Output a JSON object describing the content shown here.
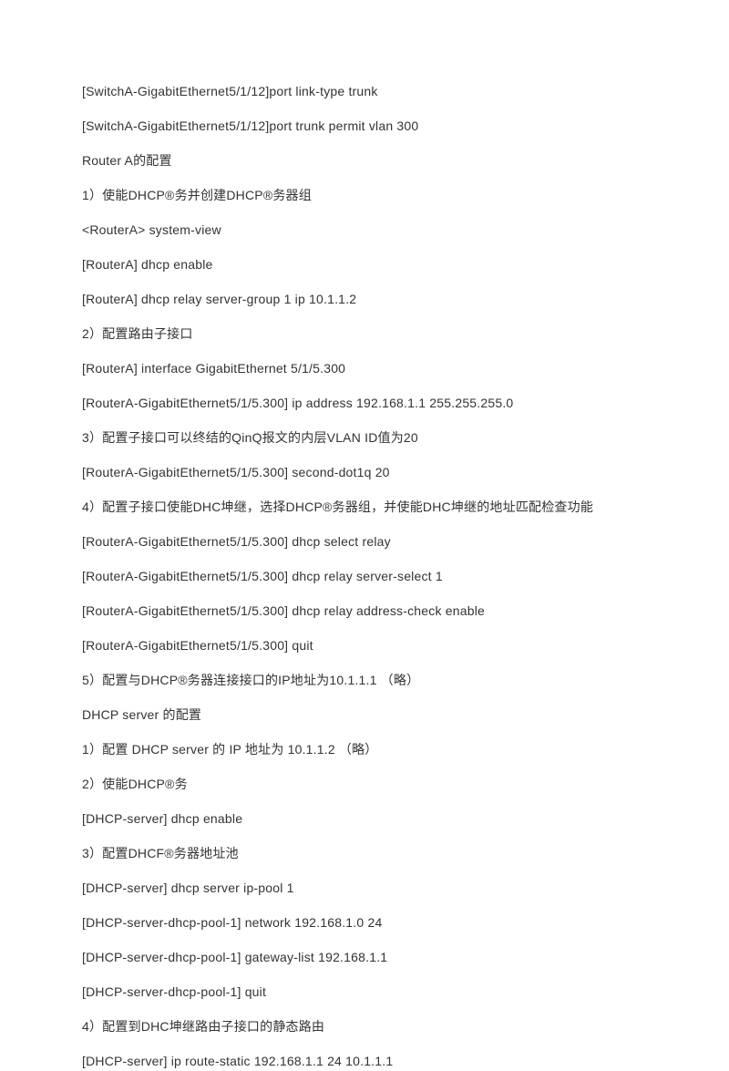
{
  "document": {
    "background_color": "#ffffff",
    "text_color": "#333333",
    "font_size": 14,
    "line_spacing": 17,
    "lines": [
      "[SwitchA-GigabitEthernet5/1/12]port link-type trunk",
      "[SwitchA-GigabitEthernet5/1/12]port trunk permit vlan 300",
      "Router A的配置",
      "1）使能DHCP®务并创建DHCP®务器组",
      "<RouterA> system-view",
      "[RouterA] dhcp enable",
      "[RouterA] dhcp relay server-group 1 ip 10.1.1.2",
      "2）配置路由子接口",
      "[RouterA] interface GigabitEthernet 5/1/5.300",
      "[RouterA-GigabitEthernet5/1/5.300] ip address 192.168.1.1 255.255.255.0",
      "3）配置子接口可以终结的QinQ报文的内层VLAN ID值为20",
      "[RouterA-GigabitEthernet5/1/5.300] second-dot1q 20",
      "4）配置子接口使能DHC坤继，选择DHCP®务器组，并使能DHC坤继的地址匹配检查功能",
      "[RouterA-GigabitEthernet5/1/5.300] dhcp select relay",
      "[RouterA-GigabitEthernet5/1/5.300] dhcp relay server-select 1",
      "[RouterA-GigabitEthernet5/1/5.300] dhcp relay address-check enable",
      "[RouterA-GigabitEthernet5/1/5.300] quit",
      "5）配置与DHCP®务器连接接口的IP地址为10.1.1.1 （略）",
      "DHCP server 的配置",
      "1）配置  DHCP server 的  IP 地址为  10.1.1.2 （略）",
      "2）使能DHCP®务",
      "[DHCP-server] dhcp enable",
      "3）配置DHCF®务器地址池",
      "[DHCP-server] dhcp server ip-pool 1",
      "[DHCP-server-dhcp-pool-1] network 192.168.1.0 24",
      "[DHCP-server-dhcp-pool-1] gateway-list 192.168.1.1",
      "[DHCP-server-dhcp-pool-1] quit",
      "4）配置到DHC坤继路由子接口的静态路由",
      "[DHCP-server] ip route-static 192.168.1.1 24 10.1.1.1"
    ]
  }
}
